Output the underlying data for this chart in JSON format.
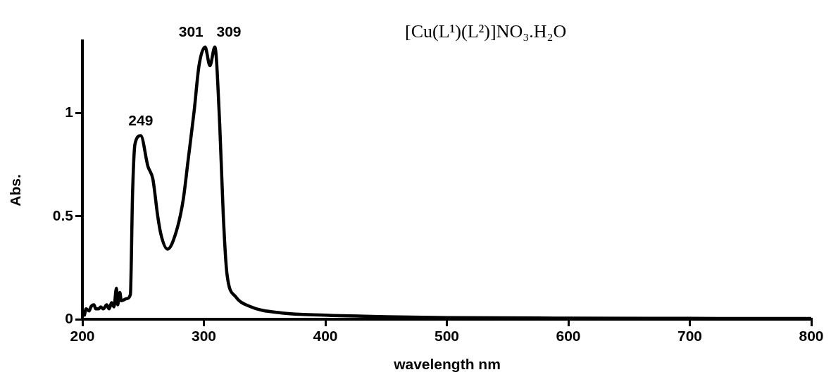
{
  "chart_data": {
    "type": "line",
    "title": "[Cu(L¹)(L²)]NO₃.H₂O",
    "xlabel": "wavelength nm",
    "ylabel": "Abs.",
    "series": [
      {
        "color": "#000000",
        "x": [
          201.7,
          203,
          205.6,
          207,
          209.5,
          211,
          213.4,
          215,
          217.3,
          220,
          222,
          224,
          226,
          228,
          229,
          230.8,
          232,
          236.6,
          239.5,
          241.3,
          243.3,
          248,
          254,
          258,
          262,
          264.7,
          270,
          277,
          283,
          287,
          292,
          296,
          301,
          305,
          309,
          313,
          316,
          319,
          326,
          337,
          364.5,
          400,
          450,
          500,
          600,
          700,
          800
        ],
        "values": [
          0.02,
          0.05,
          0.04,
          0.06,
          0.07,
          0.05,
          0.05,
          0.06,
          0.05,
          0.07,
          0.05,
          0.08,
          0.06,
          0.15,
          0.07,
          0.13,
          0.09,
          0.1,
          0.12,
          0.61,
          0.85,
          0.89,
          0.74,
          0.68,
          0.5,
          0.41,
          0.34,
          0.42,
          0.58,
          0.77,
          1.01,
          1.23,
          1.32,
          1.23,
          1.32,
          0.95,
          0.5,
          0.22,
          0.11,
          0.064,
          0.03,
          0.02,
          0.012,
          0.008,
          0.005,
          0.004,
          0.003
        ]
      }
    ],
    "annotations": [
      {
        "text": "249",
        "x": 248,
        "y": 0.89
      },
      {
        "text": "301",
        "x": 301,
        "y": 1.32
      },
      {
        "text": "309",
        "x": 309,
        "y": 1.32
      }
    ],
    "xlim": [
      200,
      800
    ],
    "xticks": [
      200,
      300,
      400,
      500,
      600,
      700,
      800
    ],
    "ylim": [
      0,
      1.35
    ],
    "yticks": [
      0,
      0.5,
      1
    ],
    "grid": false,
    "legend": false,
    "marker": "none",
    "line_style": "solid"
  }
}
